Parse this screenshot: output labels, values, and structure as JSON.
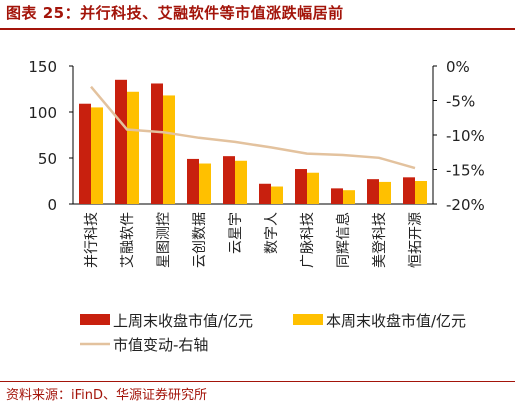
{
  "header": {
    "title": "图表 25：并行科技、艾融软件等市值涨跌幅居前"
  },
  "footer": {
    "source": "资料来源：iFinD、华源证券研究所"
  },
  "chart_data": {
    "type": "bar",
    "categories": [
      "并行科技",
      "艾融软件",
      "星图测控",
      "云创数据",
      "云星宇",
      "数字人",
      "广脉科技",
      "同辉信息",
      "美登科技",
      "恒拓开源"
    ],
    "series": [
      {
        "name": "上周末收盘市值/亿元",
        "axis": "left",
        "kind": "bar",
        "color": "#c8200e",
        "values": [
          109,
          135,
          131,
          49,
          52,
          22,
          38,
          17,
          27,
          29
        ]
      },
      {
        "name": "本周末收盘市值/亿元",
        "axis": "left",
        "kind": "bar",
        "color": "#ffc000",
        "values": [
          105,
          122,
          118,
          44,
          47,
          19,
          34,
          15,
          24,
          25
        ]
      },
      {
        "name": "市值变动-右轴",
        "axis": "right",
        "kind": "line",
        "color": "#e3c29e",
        "values": [
          -3.0,
          -9.2,
          -9.6,
          -10.4,
          -11.0,
          -11.8,
          -12.7,
          -12.9,
          -13.3,
          -14.8
        ]
      }
    ],
    "yleft": {
      "min": 0,
      "max": 150,
      "ticks": [
        0,
        50,
        100,
        150
      ],
      "labels": [
        "0",
        "50",
        "100",
        "150"
      ]
    },
    "yright": {
      "min": -20,
      "max": 0,
      "ticks": [
        0,
        -5,
        -10,
        -15,
        -20
      ],
      "labels": [
        "0%",
        "-5%",
        "-10%",
        "-15%",
        "-20%"
      ]
    },
    "grid": false,
    "legend": "bottom"
  }
}
